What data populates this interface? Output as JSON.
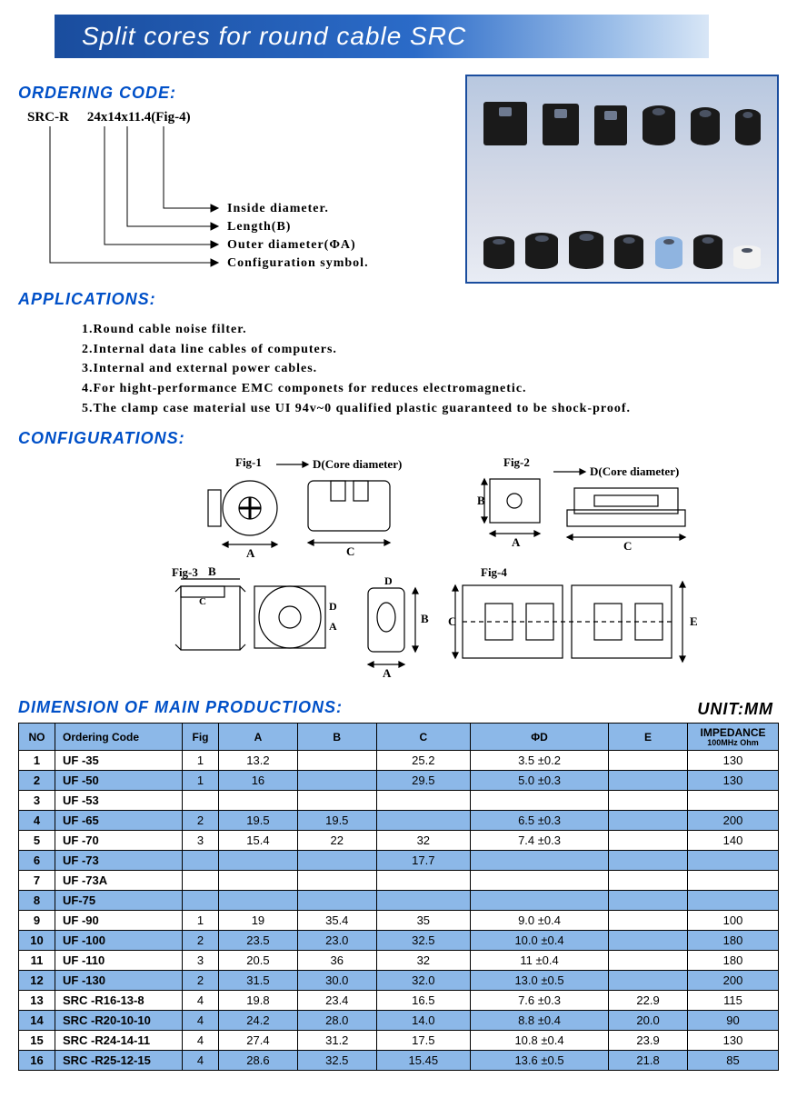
{
  "banner": "Split cores for round cable  SRC",
  "section_ordering": "ORDERING CODE:",
  "section_applications": "APPLICATIONS:",
  "section_config": "CONFIGURATIONS:",
  "section_dim": "DIMENSION OF MAIN PRODUCTIONS:",
  "unit_label": "UNIT:MM",
  "ordering": {
    "prefix": "SRC-R",
    "sample": "24x14x11.4(Fig-4)",
    "labels": [
      "Inside diameter.",
      "Length(B)",
      "Outer diameter(ΦA)",
      "Configuration symbol."
    ]
  },
  "applications": [
    "1.Round cable noise filter.",
    "2.Internal data line cables of computers.",
    "3.Internal and external power cables.",
    "4.For hight-performance EMC componets for reduces electromagnetic.",
    "5.The clamp case material use UI 94v~0 qualified plastic guaranteed to be shock-proof."
  ],
  "config_labels": {
    "fig1": "Fig-1",
    "fig2": "Fig-2",
    "fig3": "Fig-3",
    "fig4": "Fig-4",
    "core_diam": "D(Core diameter)"
  },
  "table": {
    "columns": [
      "NO",
      "Ordering Code",
      "Fig",
      "A",
      "B",
      "C",
      "ΦD",
      "E"
    ],
    "impedance_header": "IMPEDANCE",
    "impedance_sub": "100MHz   Ohm",
    "rows": [
      {
        "no": "1",
        "code": "UF -35",
        "fig": "1",
        "A": "13.2",
        "B": "",
        "C": "25.2",
        "D": "3.5 ±0.2",
        "E": "",
        "Z": "130"
      },
      {
        "no": "2",
        "code": "UF -50",
        "fig": "1",
        "A": "16",
        "B": "",
        "C": "29.5",
        "D": "5.0 ±0.3",
        "E": "",
        "Z": "130"
      },
      {
        "no": "3",
        "code": "UF -53",
        "fig": "",
        "A": "",
        "B": "",
        "C": "",
        "D": "",
        "E": "",
        "Z": ""
      },
      {
        "no": "4",
        "code": "UF -65",
        "fig": "2",
        "A": "19.5",
        "B": "19.5",
        "C": "",
        "D": "6.5 ±0.3",
        "E": "",
        "Z": "200"
      },
      {
        "no": "5",
        "code": "UF -70",
        "fig": "3",
        "A": "15.4",
        "B": "22",
        "C": "32",
        "D": "7.4 ±0.3",
        "E": "",
        "Z": "140"
      },
      {
        "no": "6",
        "code": "UF -73",
        "fig": "",
        "A": "",
        "B": "",
        "C": "17.7",
        "D": "",
        "E": "",
        "Z": ""
      },
      {
        "no": "7",
        "code": "UF -73A",
        "fig": "",
        "A": "",
        "B": "",
        "C": "",
        "D": "",
        "E": "",
        "Z": ""
      },
      {
        "no": "8",
        "code": "UF-75",
        "fig": "",
        "A": "",
        "B": "",
        "C": "",
        "D": "",
        "E": "",
        "Z": ""
      },
      {
        "no": "9",
        "code": "UF -90",
        "fig": "1",
        "A": "19",
        "B": "35.4",
        "C": "35",
        "D": "9.0 ±0.4",
        "E": "",
        "Z": "100"
      },
      {
        "no": "10",
        "code": "UF -100",
        "fig": "2",
        "A": "23.5",
        "B": "23.0",
        "C": "32.5",
        "D": "10.0 ±0.4",
        "E": "",
        "Z": "180"
      },
      {
        "no": "11",
        "code": "UF -110",
        "fig": "3",
        "A": "20.5",
        "B": "36",
        "C": "32",
        "D": "11 ±0.4",
        "E": "",
        "Z": "180"
      },
      {
        "no": "12",
        "code": "UF -130",
        "fig": "2",
        "A": "31.5",
        "B": "30.0",
        "C": "32.0",
        "D": "13.0 ±0.5",
        "E": "",
        "Z": "200"
      },
      {
        "no": "13",
        "code": "SRC -R16-13-8",
        "fig": "4",
        "A": "19.8",
        "B": "23.4",
        "C": "16.5",
        "D": "7.6 ±0.3",
        "E": "22.9",
        "Z": "115"
      },
      {
        "no": "14",
        "code": "SRC -R20-10-10",
        "fig": "4",
        "A": "24.2",
        "B": "28.0",
        "C": "14.0",
        "D": "8.8 ±0.4",
        "E": "20.0",
        "Z": "90"
      },
      {
        "no": "15",
        "code": "SRC -R24-14-11",
        "fig": "4",
        "A": "27.4",
        "B": "31.2",
        "C": "17.5",
        "D": "10.8 ±0.4",
        "E": "23.9",
        "Z": "130"
      },
      {
        "no": "16",
        "code": "SRC -R25-12-15",
        "fig": "4",
        "A": "28.6",
        "B": "32.5",
        "C": "15.45",
        "D": "13.6 ±0.5",
        "E": "21.8",
        "Z": "85"
      }
    ]
  },
  "colors": {
    "banner_start": "#1a4d9e",
    "banner_end": "#d8e6f6",
    "heading": "#0050c8",
    "row_even": "#8cb8e8",
    "row_odd": "#ffffff",
    "border": "#000000"
  }
}
